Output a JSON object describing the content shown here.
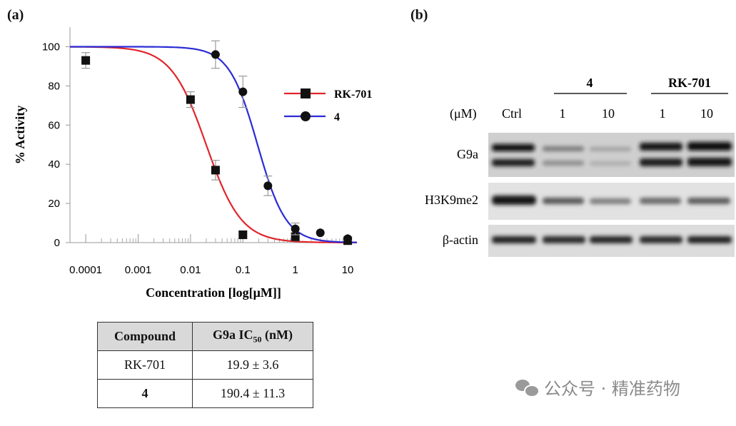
{
  "panel_a_label": "(a)",
  "panel_b_label": "(b)",
  "chart_data": {
    "type": "line",
    "xlabel": "Concentration [log[μM]]",
    "ylabel": "% Activity",
    "x_scale": "log",
    "xlim": [
      5e-05,
      15
    ],
    "ylim": [
      0,
      110
    ],
    "x_ticks": [
      {
        "value": 0.0001,
        "label": "0.0001"
      },
      {
        "value": 0.001,
        "label": "0.001"
      },
      {
        "value": 0.01,
        "label": "0.01"
      },
      {
        "value": 0.1,
        "label": "0.1"
      },
      {
        "value": 1,
        "label": "1"
      },
      {
        "value": 10,
        "label": "10"
      }
    ],
    "y_ticks": [
      0,
      20,
      40,
      60,
      80,
      100
    ],
    "legend_position": "right",
    "series": [
      {
        "name": "RK-701",
        "color": "#e0262b",
        "marker": "square",
        "ic50_uM": 0.0199,
        "hill": 1.3,
        "points": [
          {
            "x": 0.0001,
            "y": 93,
            "err": 4
          },
          {
            "x": 0.01,
            "y": 73,
            "err": 4
          },
          {
            "x": 0.03,
            "y": 37,
            "err": 5
          },
          {
            "x": 0.1,
            "y": 4,
            "err": 2
          },
          {
            "x": 1,
            "y": 3,
            "err": 2
          },
          {
            "x": 10,
            "y": 1,
            "err": 1
          }
        ]
      },
      {
        "name": "4",
        "color": "#2b2bd6",
        "marker": "circle",
        "ic50_uM": 0.19,
        "hill": 1.6,
        "points": [
          {
            "x": 0.03,
            "y": 96,
            "err": 7
          },
          {
            "x": 0.1,
            "y": 77,
            "err": 8
          },
          {
            "x": 0.3,
            "y": 29,
            "err": 5
          },
          {
            "x": 1,
            "y": 7,
            "err": 3
          },
          {
            "x": 3,
            "y": 5,
            "err": 0
          },
          {
            "x": 10,
            "y": 2,
            "err": 1
          }
        ]
      }
    ]
  },
  "table": {
    "headers": [
      "Compound",
      "G9a IC",
      "50",
      " (nM)"
    ],
    "rows": [
      {
        "compound": "RK-701",
        "ic50": "19.9 ± 3.6"
      },
      {
        "compound": "4",
        "ic50": "190.4 ± 11.3"
      }
    ]
  },
  "blot": {
    "group_4": "4",
    "group_rk": "RK-701",
    "unit": "(μM)",
    "lanes": [
      "Ctrl",
      "1",
      "10",
      "1",
      "10"
    ],
    "rows": [
      "G9a",
      "H3K9me2",
      "β-actin"
    ]
  },
  "watermark": "公众号 · 精准药物"
}
